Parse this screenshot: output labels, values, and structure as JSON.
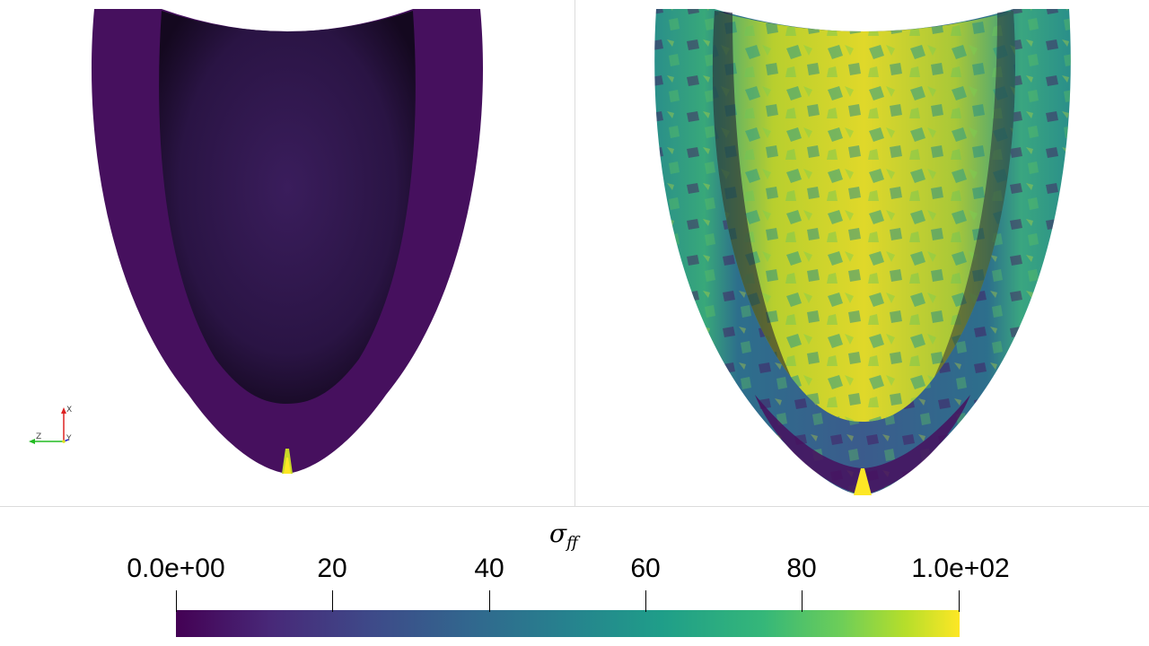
{
  "colorbar": {
    "title_main": "σ",
    "title_sub": "ff",
    "ticks": [
      "0.0e+00",
      "20",
      "40",
      "60",
      "80",
      "1.0e+02"
    ],
    "range": [
      0,
      100
    ],
    "colormap": "viridis"
  },
  "orientation_axes": {
    "x_label": "X",
    "y_label": "Y",
    "z_label": "Z"
  },
  "colors": {
    "low": "#440154",
    "high": "#fde725",
    "background": "#ffffff"
  }
}
